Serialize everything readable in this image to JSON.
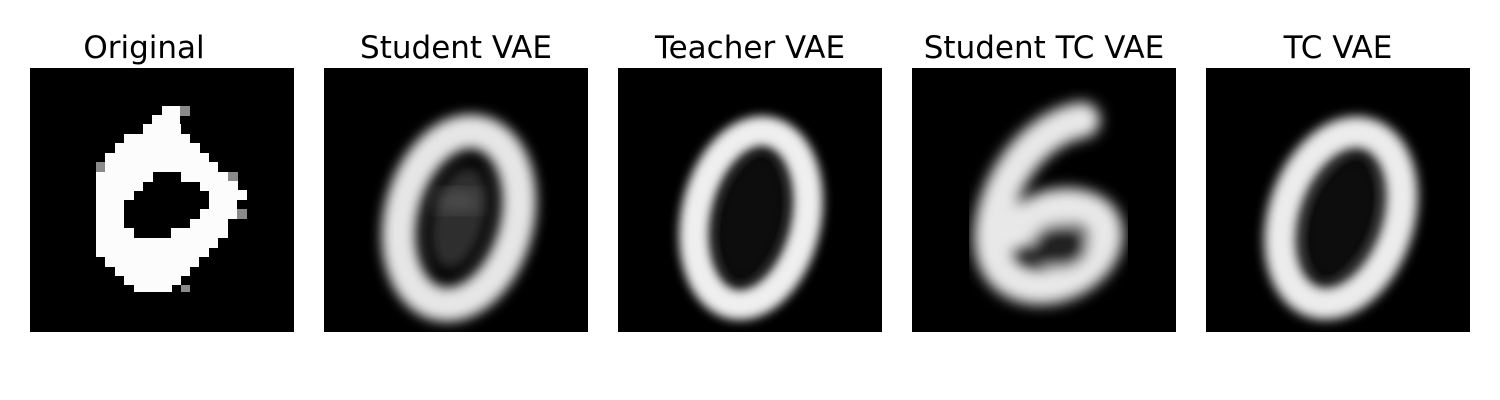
{
  "figure": {
    "panels": [
      {
        "id": "original",
        "title": "Original"
      },
      {
        "id": "student-vae",
        "title": "Student VAE"
      },
      {
        "id": "teacher-vae",
        "title": "Teacher VAE"
      },
      {
        "id": "student-tc-vae",
        "title": "Student TC VAE"
      },
      {
        "id": "tc-vae",
        "title": "TC VAE"
      }
    ]
  },
  "colors": {
    "background": "#000000",
    "digit": "#ffffff"
  }
}
